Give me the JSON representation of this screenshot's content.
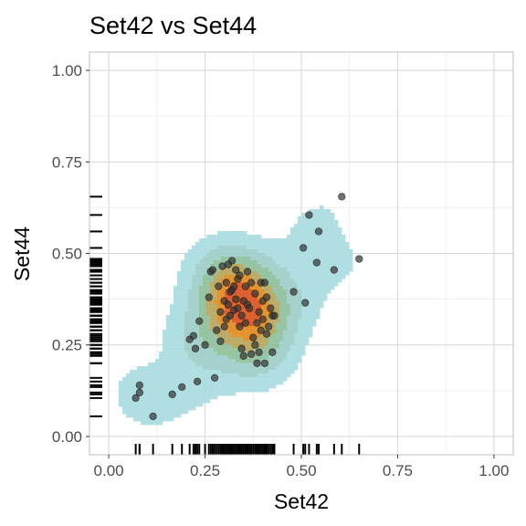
{
  "chart_data": {
    "type": "scatter",
    "title": "Set42 vs Set44",
    "xlabel": "Set42",
    "ylabel": "Set44",
    "xlim": [
      -0.05,
      1.05
    ],
    "ylim": [
      -0.05,
      1.05
    ],
    "x_ticks": [
      {
        "value": 0.0,
        "label": "0.00"
      },
      {
        "value": 0.25,
        "label": "0.25"
      },
      {
        "value": 0.5,
        "label": "0.50"
      },
      {
        "value": 0.75,
        "label": "0.75"
      },
      {
        "value": 1.0,
        "label": "1.00"
      }
    ],
    "y_ticks": [
      {
        "value": 0.0,
        "label": "0.00"
      },
      {
        "value": 0.25,
        "label": "0.25"
      },
      {
        "value": 0.5,
        "label": "0.50"
      },
      {
        "value": 0.75,
        "label": "0.75"
      },
      {
        "value": 1.0,
        "label": "1.00"
      }
    ],
    "grid": true,
    "rug": true,
    "density_contours": true,
    "colors": {
      "points": "#333333",
      "rug": "#000000",
      "grid_major": "#d9d9d9",
      "grid_minor": "#ececec",
      "panel_border": "#bfbfbf",
      "density_low": "#a8dcdf",
      "density_mid": "#8fbf9a",
      "density_high": "#e08a1e",
      "density_peak": "#d9531e"
    },
    "x": [
      0.07,
      0.08,
      0.08,
      0.115,
      0.165,
      0.19,
      0.21,
      0.22,
      0.225,
      0.23,
      0.235,
      0.25,
      0.26,
      0.265,
      0.27,
      0.275,
      0.28,
      0.285,
      0.29,
      0.29,
      0.295,
      0.3,
      0.3,
      0.305,
      0.305,
      0.31,
      0.31,
      0.315,
      0.315,
      0.32,
      0.32,
      0.325,
      0.325,
      0.33,
      0.33,
      0.335,
      0.335,
      0.34,
      0.34,
      0.345,
      0.345,
      0.35,
      0.35,
      0.355,
      0.355,
      0.36,
      0.36,
      0.365,
      0.37,
      0.37,
      0.375,
      0.38,
      0.38,
      0.385,
      0.385,
      0.39,
      0.39,
      0.395,
      0.395,
      0.4,
      0.4,
      0.405,
      0.405,
      0.41,
      0.41,
      0.415,
      0.42,
      0.425,
      0.425,
      0.43,
      0.48,
      0.505,
      0.51,
      0.52,
      0.54,
      0.545,
      0.585,
      0.605,
      0.65
    ],
    "y": [
      0.105,
      0.14,
      0.12,
      0.055,
      0.115,
      0.135,
      0.265,
      0.275,
      0.24,
      0.15,
      0.315,
      0.25,
      0.38,
      0.45,
      0.455,
      0.16,
      0.29,
      0.41,
      0.26,
      0.34,
      0.465,
      0.37,
      0.3,
      0.42,
      0.32,
      0.36,
      0.47,
      0.33,
      0.395,
      0.4,
      0.48,
      0.345,
      0.41,
      0.375,
      0.455,
      0.35,
      0.43,
      0.3,
      0.44,
      0.24,
      0.33,
      0.37,
      0.22,
      0.41,
      0.31,
      0.45,
      0.36,
      0.35,
      0.225,
      0.42,
      0.27,
      0.39,
      0.25,
      0.31,
      0.2,
      0.34,
      0.23,
      0.42,
      0.29,
      0.32,
      0.37,
      0.2,
      0.42,
      0.28,
      0.38,
      0.3,
      0.35,
      0.23,
      0.33,
      0.33,
      0.395,
      0.515,
      0.365,
      0.605,
      0.475,
      0.56,
      0.455,
      0.655,
      0.485
    ]
  }
}
